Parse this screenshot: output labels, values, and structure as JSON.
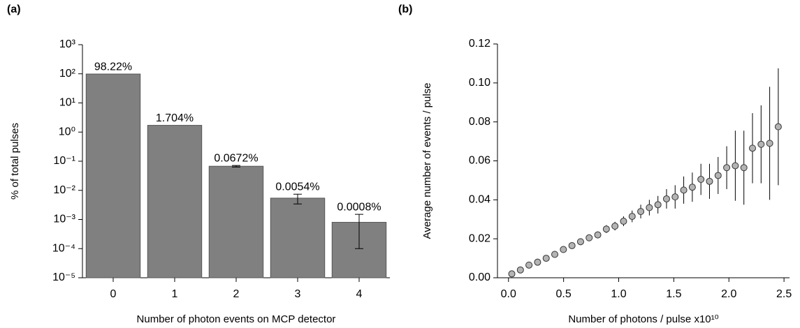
{
  "chart_data": [
    {
      "type": "bar",
      "panel_label": "(a)",
      "x_label": "Number of photon events on MCP detector",
      "y_label": "% of total pulses",
      "categories": [
        "0",
        "1",
        "2",
        "3",
        "4"
      ],
      "values": [
        98.22,
        1.704,
        0.0672,
        0.0054,
        0.0008
      ],
      "value_labels": [
        "98.22%",
        "1.704%",
        "0.0672%",
        "0.0054%",
        "0.0008%"
      ],
      "errors": [
        null,
        null,
        0.004,
        0.002,
        0.0007
      ],
      "color": "#808080",
      "log_scale": true,
      "ylim": [
        1e-05,
        1000
      ],
      "yticks": [
        {
          "value": 1e-05,
          "label": "10⁻⁵"
        },
        {
          "value": 0.0001,
          "label": "10⁻⁴"
        },
        {
          "value": 0.001,
          "label": "10⁻³"
        },
        {
          "value": 0.01,
          "label": "10⁻²"
        },
        {
          "value": 0.1,
          "label": "10⁻¹"
        },
        {
          "value": 1,
          "label": "10⁰"
        },
        {
          "value": 10,
          "label": "10¹"
        },
        {
          "value": 100,
          "label": "10²"
        },
        {
          "value": 1000,
          "label": "10³"
        }
      ]
    },
    {
      "type": "scatter",
      "panel_label": "(b)",
      "x_label": "Number of photons / pulse x10¹⁰",
      "y_label": "Average number of events / pulse",
      "x": [
        0.03,
        0.108,
        0.186,
        0.264,
        0.342,
        0.42,
        0.498,
        0.576,
        0.654,
        0.732,
        0.81,
        0.888,
        0.966,
        1.044,
        1.122,
        1.2,
        1.278,
        1.356,
        1.434,
        1.512,
        1.59,
        1.668,
        1.746,
        1.824,
        1.902,
        1.98,
        2.058,
        2.136,
        2.214,
        2.292,
        2.37,
        2.448
      ],
      "values": [
        0.002,
        0.004,
        0.0065,
        0.008,
        0.01,
        0.012,
        0.0145,
        0.0165,
        0.0185,
        0.0205,
        0.022,
        0.025,
        0.0265,
        0.029,
        0.0315,
        0.034,
        0.036,
        0.0375,
        0.0405,
        0.0415,
        0.045,
        0.0465,
        0.0505,
        0.0495,
        0.0525,
        0.0565,
        0.0575,
        0.0565,
        0.0665,
        0.0685,
        0.069,
        0.0775
      ],
      "errors": [
        0.0003,
        0.0003,
        0.0004,
        0.0005,
        0.0008,
        0.001,
        0.001,
        0.0012,
        0.0013,
        0.0015,
        0.0018,
        0.002,
        0.0022,
        0.0025,
        0.003,
        0.0035,
        0.004,
        0.0045,
        0.005,
        0.006,
        0.007,
        0.0075,
        0.008,
        0.009,
        0.0095,
        0.011,
        0.018,
        0.019,
        0.018,
        0.02,
        0.029,
        0.03
      ],
      "color": "#b4b4b4",
      "xlim": [
        -0.1,
        2.55
      ],
      "ylim": [
        0,
        0.12
      ],
      "xticks": [
        {
          "value": 0,
          "label": "0.0"
        },
        0.5,
        {
          "value": 1,
          "label": "1.0"
        },
        1.5,
        {
          "value": 2,
          "label": "2.0"
        },
        2.5
      ],
      "yticks": [
        {
          "value": 0,
          "label": "0.00"
        },
        {
          "value": 0.02,
          "label": "0.02"
        },
        {
          "value": 0.04,
          "label": "0.04"
        },
        {
          "value": 0.06,
          "label": "0.06"
        },
        {
          "value": 0.08,
          "label": "0.08"
        },
        {
          "value": 0.1,
          "label": "0.10"
        },
        {
          "value": 0.12,
          "label": "0.12"
        }
      ]
    }
  ]
}
